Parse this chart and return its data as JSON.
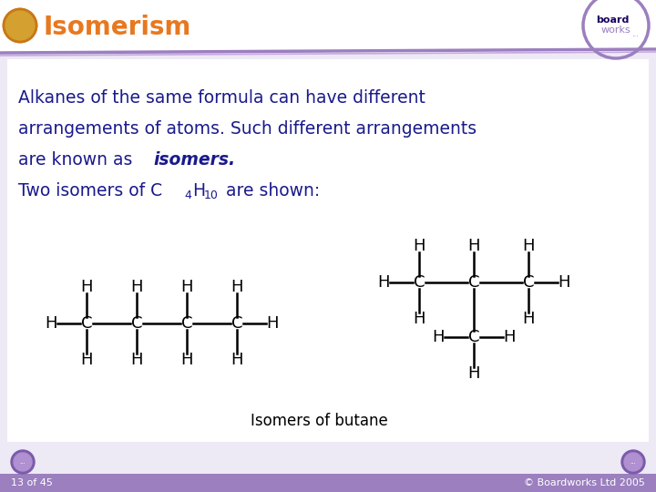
{
  "title": "Isomerism",
  "title_color": "#E87820",
  "slide_bg": "#EDE9F5",
  "header_bg": "#FFFFFF",
  "header_line1_color": "#9B7FBF",
  "header_line2_color": "#C8A8E0",
  "body_bg": "#FFFFFF",
  "body_text_color": "#1A1A8C",
  "caption": "Isomers of butane",
  "caption_color": "#000000",
  "footer_text": "13 of 45",
  "footer_right": "© Boardworks Ltd 2005",
  "footer_bg": "#9B7FBF",
  "footer_text_color": "#FFFFFF",
  "atom_color": "#000000",
  "bond_color": "#000000",
  "figw": 7.2,
  "figh": 5.4,
  "dpi": 100
}
